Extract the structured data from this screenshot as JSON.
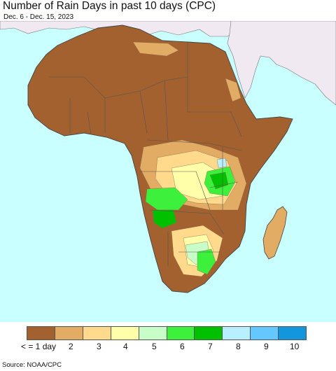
{
  "title": "Number of Rain Days in past 10 days (CPC)",
  "subtitle": "Dec. 6 - Dec. 15, 2023",
  "source": "Source: NOAA/CPC",
  "map": {
    "ocean_color": "#c9ffff",
    "outside_land_color": "#f0e9f1",
    "base_land_color": "#a2612f"
  },
  "legend": {
    "colors": [
      "#a2612f",
      "#e3ac64",
      "#ffda8c",
      "#ffffaa",
      "#c8ffc8",
      "#3cf03c",
      "#00c000",
      "#b8f0ff",
      "#64c8ff",
      "#1496dc"
    ],
    "labels": [
      "< = 1 day",
      "2",
      "3",
      "4",
      "5",
      "6",
      "7",
      "8",
      "9",
      "10"
    ]
  }
}
